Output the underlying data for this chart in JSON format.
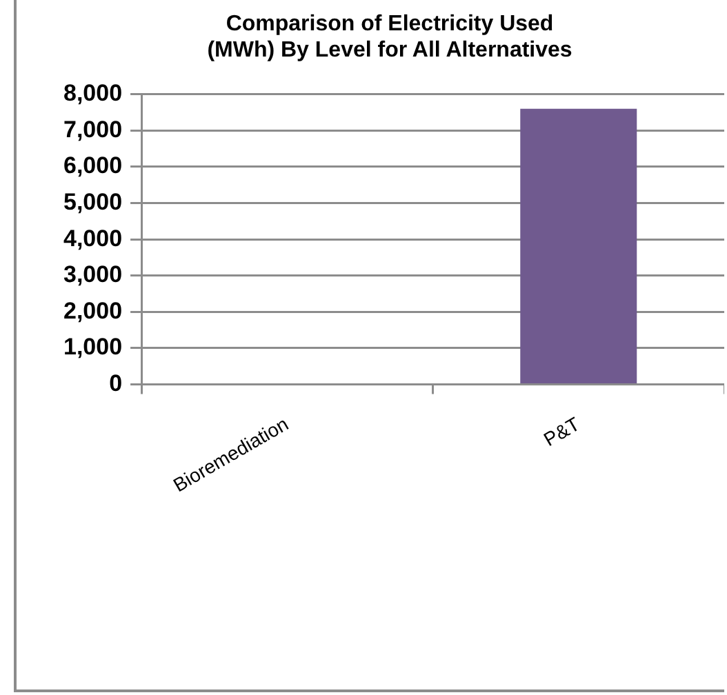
{
  "chart_data": {
    "type": "bar",
    "title": "Comparison of Electricity Used\n(MWh) By Level for All Alternatives",
    "categories": [
      "Bioremediation",
      "P&T"
    ],
    "values": [
      0,
      7600
    ],
    "color": "#705a8f",
    "ylim": [
      0,
      8000
    ],
    "yticks": [
      0,
      {
        "value": 1000,
        "label": "1,000"
      },
      {
        "value": 2000,
        "label": "2,000"
      },
      {
        "value": 3000,
        "label": "3,000"
      },
      {
        "value": 4000,
        "label": "4,000"
      },
      {
        "value": 5000,
        "label": "5,000"
      },
      {
        "value": 6000,
        "label": "6,000"
      },
      {
        "value": 7000,
        "label": "7,000"
      },
      {
        "value": 8000,
        "label": "8,000"
      }
    ],
    "grid": "y",
    "legend": false
  }
}
